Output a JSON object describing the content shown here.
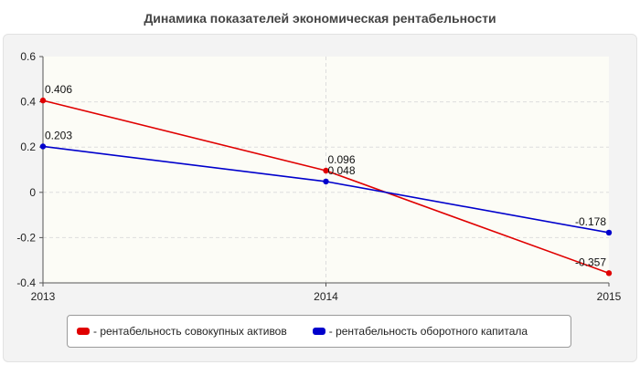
{
  "chart_data": {
    "type": "line",
    "title": "Динамика показателей экономическая рентабельности",
    "x": [
      "2013",
      "2014",
      "2015"
    ],
    "ylim": [
      -0.4,
      0.6
    ],
    "yticks": [
      "0.6",
      "0.4",
      "0.2",
      "0",
      "-0.2",
      "-0.4"
    ],
    "grid": true,
    "legend_position": "bottom",
    "series": [
      {
        "name": "- рентабельность совокупных активов",
        "color": "#e00000",
        "values": [
          0.406,
          0.096,
          -0.357
        ],
        "labels": [
          "0.406",
          "0.096",
          "-0.357"
        ]
      },
      {
        "name": "- рентабельность оборотного капитала",
        "color": "#0000cc",
        "values": [
          0.203,
          0.048,
          -0.178
        ],
        "labels": [
          "0.203",
          "0.048",
          "-0.178"
        ]
      }
    ]
  }
}
